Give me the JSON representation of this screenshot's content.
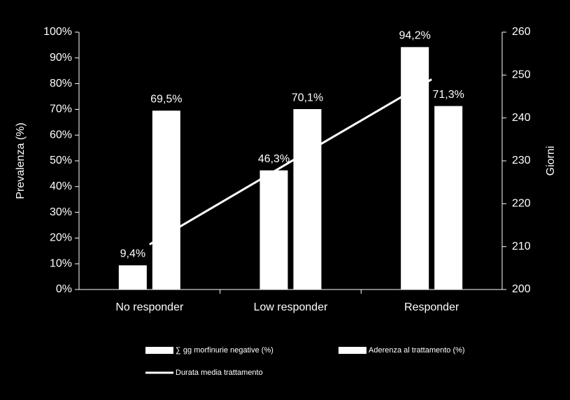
{
  "chart_data": {
    "type": "bar",
    "categories": [
      "No responder",
      "Low responder",
      "Responder"
    ],
    "series": [
      {
        "name": "∑ gg morfinurie  negative (%)",
        "type": "bar",
        "color": "#ffffff",
        "values": [
          9.4,
          46.3,
          94.2
        ],
        "value_labels": [
          "9,4%",
          "46,3%",
          "94,2%"
        ]
      },
      {
        "name": "Aderenza al trattamento (%)",
        "type": "bar",
        "color": "#ffffff",
        "values": [
          69.5,
          70.1,
          71.3
        ],
        "value_labels": [
          "69,5%",
          "70,1%",
          "71,3%"
        ]
      },
      {
        "name": "Durata media trattamento",
        "type": "line",
        "axis": "y2",
        "color": "#ffffff",
        "values": [
          210.5,
          229.8,
          249
        ]
      }
    ],
    "y_label": "Prevalenza (%)",
    "y2_label": "Giorni",
    "ylim": [
      0,
      100
    ],
    "yticks": [
      {
        "value": 0,
        "label": "0%"
      },
      {
        "value": 10,
        "label": "10%"
      },
      {
        "value": 20,
        "label": "20%"
      },
      {
        "value": 30,
        "label": "30%"
      },
      {
        "value": 40,
        "label": "40%"
      },
      {
        "value": 50,
        "label": "50%"
      },
      {
        "value": 60,
        "label": "60%"
      },
      {
        "value": 70,
        "label": "70%"
      },
      {
        "value": 80,
        "label": "80%"
      },
      {
        "value": 90,
        "label": "90%"
      },
      {
        "value": 100,
        "label": "100%"
      }
    ],
    "y2lim": [
      200,
      260
    ],
    "y2ticks": [
      200,
      210,
      220,
      230,
      240,
      250,
      260
    ],
    "legend": "bottom"
  }
}
